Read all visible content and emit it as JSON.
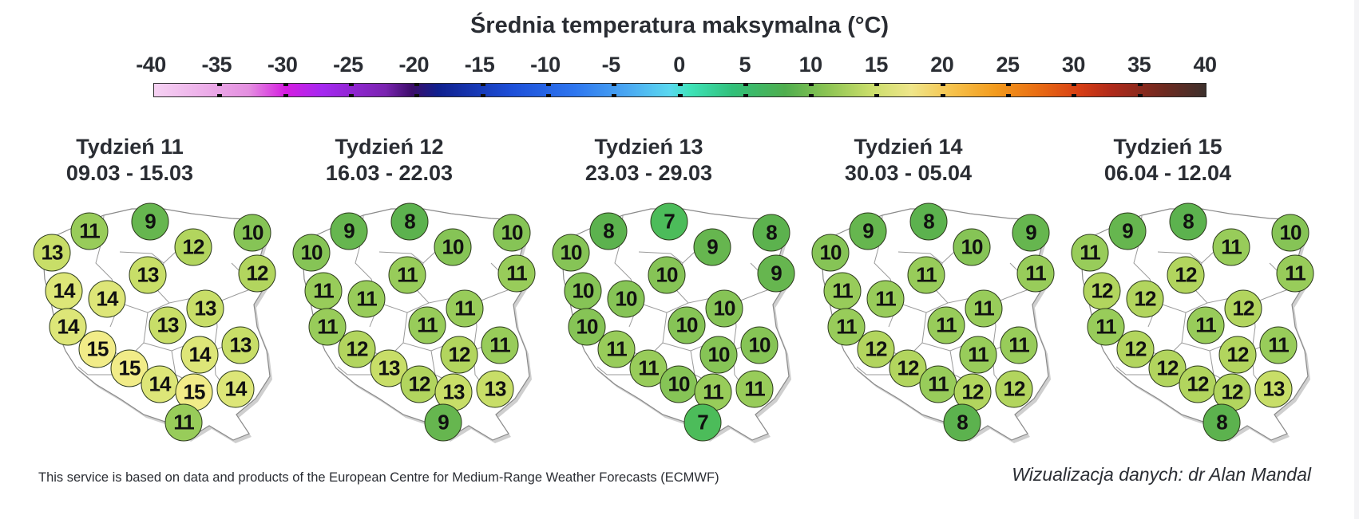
{
  "title": "Średnia temperatura maksymalna (°C)",
  "colorbar": {
    "ticks": [
      "-40",
      "-35",
      "-30",
      "-25",
      "-20",
      "-15",
      "-10",
      "-5",
      "0",
      "5",
      "10",
      "15",
      "20",
      "25",
      "30",
      "35",
      "40"
    ],
    "min": -40,
    "max": 40,
    "colors": [
      "#f6d2f3",
      "#d51de0",
      "#a528f0",
      "#3c0d6a",
      "#10208e",
      "#2e76ef",
      "#5ad8f0",
      "#31c07a",
      "#8cc453",
      "#efe68a",
      "#f39b1d",
      "#d73e14",
      "#3d302c"
    ]
  },
  "value_colors": {
    "7": "#4cbc5a",
    "8": "#5cb24e",
    "9": "#66b64f",
    "10": "#86c456",
    "11": "#98cc5a",
    "12": "#b2d55e",
    "13": "#c8de68",
    "14": "#dde678",
    "15": "#f1ec88"
  },
  "weeks": [
    {
      "label": "Tydzień 11",
      "dates": "09.03 - 15.03",
      "values": [
        11,
        9,
        10,
        13,
        12,
        12,
        13,
        14,
        14,
        13,
        13,
        14,
        13,
        15,
        14,
        15,
        14,
        15,
        14,
        11
      ]
    },
    {
      "label": "Tydzień 12",
      "dates": "16.03 - 22.03",
      "values": [
        9,
        8,
        10,
        10,
        10,
        11,
        11,
        11,
        11,
        11,
        11,
        11,
        11,
        12,
        12,
        13,
        12,
        13,
        13,
        9
      ]
    },
    {
      "label": "Tydzień 13",
      "dates": "23.03 - 29.03",
      "values": [
        8,
        7,
        8,
        10,
        9,
        9,
        10,
        10,
        10,
        10,
        10,
        10,
        10,
        11,
        10,
        11,
        10,
        11,
        11,
        7
      ]
    },
    {
      "label": "Tydzień 14",
      "dates": "30.03 - 05.04",
      "values": [
        9,
        8,
        9,
        10,
        10,
        11,
        11,
        11,
        11,
        11,
        11,
        11,
        11,
        12,
        11,
        12,
        11,
        12,
        12,
        8
      ]
    },
    {
      "label": "Tydzień 15",
      "dates": "06.04 - 12.04",
      "values": [
        9,
        8,
        10,
        11,
        11,
        11,
        12,
        12,
        12,
        12,
        11,
        11,
        11,
        12,
        12,
        12,
        12,
        12,
        13,
        8
      ]
    }
  ],
  "footer": {
    "source": "This service is based on data and products of the European Centre for Medium-Range Weather Forecasts (ECMWF)",
    "credit": "Wizualizacja danych: dr Alan Mandal"
  }
}
